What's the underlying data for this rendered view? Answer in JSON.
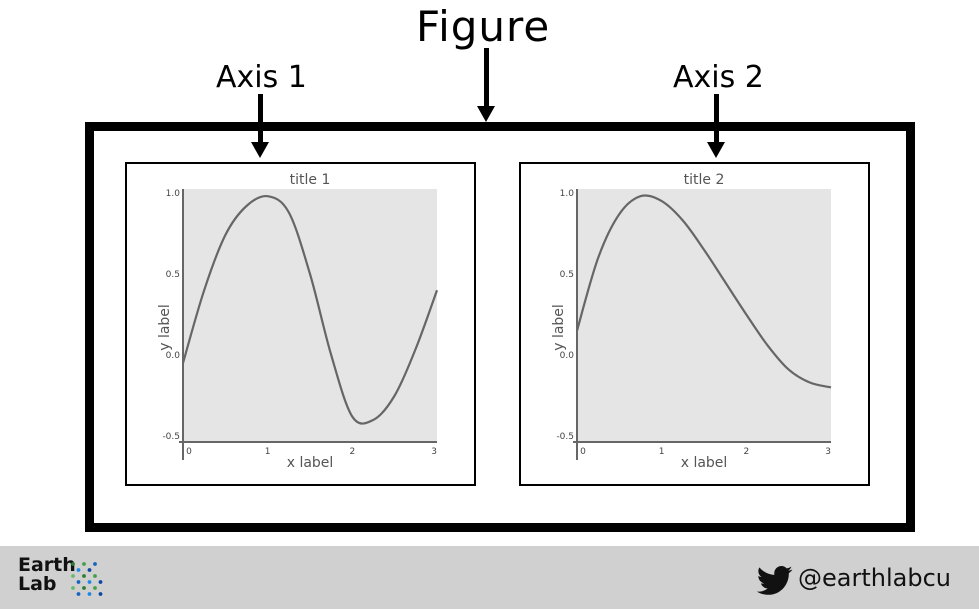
{
  "header": {
    "figure_label": "Figure",
    "axis_labels": [
      "Axis 1",
      "Axis 2"
    ]
  },
  "chart_data": [
    {
      "type": "line",
      "title": "title 1",
      "xlabel": "x label",
      "ylabel": "y label",
      "xlim": [
        0,
        3
      ],
      "ylim": [
        -0.5,
        1.0
      ],
      "xticks": [
        "0",
        "1",
        "2",
        "3"
      ],
      "yticks": [
        "1.0",
        "0.5",
        "0.0",
        "-0.5"
      ],
      "grid": false,
      "x": [
        0.0,
        0.25,
        0.5,
        0.75,
        1.0,
        1.25,
        1.5,
        1.75,
        2.0,
        2.25,
        2.5,
        2.75,
        3.0
      ],
      "y": [
        -0.05,
        0.4,
        0.74,
        0.92,
        0.98,
        0.88,
        0.5,
        0.0,
        -0.38,
        -0.4,
        -0.25,
        0.04,
        0.4
      ],
      "line_color": "#666666"
    },
    {
      "type": "line",
      "title": "title 2",
      "xlabel": "x label",
      "ylabel": "y label",
      "xlim": [
        0,
        3
      ],
      "ylim": [
        -0.5,
        1.0
      ],
      "xticks": [
        "0",
        "1",
        "2",
        "3"
      ],
      "yticks": [
        "1.0",
        "0.5",
        "0.0",
        "-0.5"
      ],
      "grid": false,
      "x": [
        0.0,
        0.25,
        0.5,
        0.75,
        1.0,
        1.25,
        1.5,
        1.75,
        2.0,
        2.25,
        2.5,
        2.75,
        3.0
      ],
      "y": [
        0.15,
        0.6,
        0.87,
        0.98,
        0.95,
        0.83,
        0.65,
        0.45,
        0.25,
        0.06,
        -0.09,
        -0.17,
        -0.2
      ],
      "line_color": "#666666"
    }
  ],
  "footer": {
    "logo_line1": "Earth",
    "logo_line2": "Lab",
    "twitter_handle": "@earthlabcu",
    "icon": "twitter-bird-icon",
    "background_color": "#d0d0d0"
  }
}
